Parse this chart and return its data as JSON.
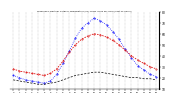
{
  "title": "Milwaukee Weather Outdoor Temperature (vs) THSW Index per Hour (Last 24 Hours)",
  "hours": [
    0,
    1,
    2,
    3,
    4,
    5,
    6,
    7,
    8,
    9,
    10,
    11,
    12,
    13,
    14,
    15,
    16,
    17,
    18,
    19,
    20,
    21,
    22,
    23
  ],
  "outdoor_temp": [
    28,
    26,
    25,
    24,
    23,
    22,
    24,
    28,
    35,
    43,
    50,
    55,
    58,
    60,
    59,
    57,
    54,
    50,
    45,
    40,
    36,
    33,
    30,
    28
  ],
  "thsw_index": [
    22,
    20,
    18,
    17,
    16,
    15,
    17,
    23,
    33,
    44,
    56,
    65,
    70,
    74,
    72,
    68,
    62,
    55,
    46,
    38,
    31,
    27,
    23,
    21
  ],
  "dew_point": [
    18,
    17,
    16,
    15,
    14,
    14,
    15,
    16,
    18,
    20,
    22,
    23,
    24,
    25,
    25,
    24,
    23,
    22,
    21,
    20,
    20,
    19,
    19,
    18
  ],
  "temp_color": "#0000ff",
  "thsw_color": "#dd0000",
  "dew_color": "#000000",
  "ylim": [
    10,
    80
  ],
  "yticks": [
    10,
    20,
    30,
    40,
    50,
    60,
    70,
    80
  ],
  "bg_color": "#ffffff",
  "grid_color": "#999999"
}
